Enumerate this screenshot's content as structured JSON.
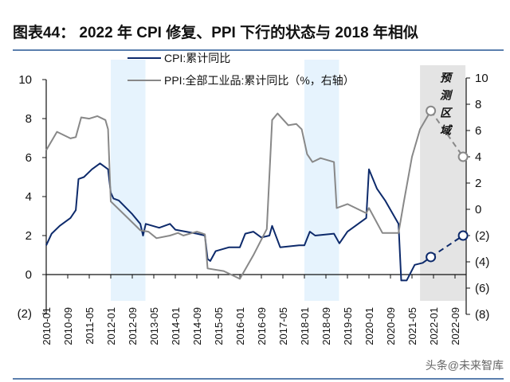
{
  "title": "图表44：  2022 年 CPI 修复、PPI 下行的状态与 2018 年相似",
  "watermark": "头条@未来智库",
  "chart_data": {
    "type": "line",
    "title": "2022 年 CPI 修复、PPI 下行的状态与 2018 年相似",
    "x_tick_labels": [
      "2010-01",
      "2010-09",
      "2011-05",
      "2012-01",
      "2012-09",
      "2013-05",
      "2014-01",
      "2014-09",
      "2015-05",
      "2016-01",
      "2016-09",
      "2017-05",
      "2018-01",
      "2018-09",
      "2019-05",
      "2020-01",
      "2020-09",
      "2021-05",
      "2022-01",
      "2022-09"
    ],
    "x_range": [
      "2010-01",
      "2023-01"
    ],
    "left_axis": {
      "ylim": [
        -2,
        10
      ],
      "ticks": [
        "10",
        "8",
        "6",
        "4",
        "2",
        "0",
        "(2)"
      ]
    },
    "right_axis": {
      "ylim": [
        -8,
        10
      ],
      "ticks": [
        "10",
        "8",
        "6",
        "4",
        "2",
        "0",
        "(2)",
        "(4)",
        "(6)",
        "(8)"
      ]
    },
    "grid": false,
    "legend_position": "top-center",
    "shaded_regions": [
      {
        "from": "2012-01",
        "to": "2013-01",
        "color": "#e6f3fd"
      },
      {
        "from": "2018-01",
        "to": "2019-01",
        "color": "#e6f3fd"
      },
      {
        "from": "2021-08",
        "to": "2022-12",
        "color": "#e4e4e4",
        "label": "预测区域"
      }
    ],
    "series": [
      {
        "name": "CPI:累计同比",
        "axis": "left",
        "color": "#0d2a6b",
        "points": [
          [
            "2010-01",
            1.5
          ],
          [
            "2010-03",
            2.1
          ],
          [
            "2010-06",
            2.5
          ],
          [
            "2010-10",
            2.9
          ],
          [
            "2010-12",
            3.3
          ],
          [
            "2011-01",
            4.9
          ],
          [
            "2011-03",
            5.0
          ],
          [
            "2011-06",
            5.4
          ],
          [
            "2011-09",
            5.7
          ],
          [
            "2011-12",
            5.4
          ],
          [
            "2012-01",
            4.2
          ],
          [
            "2012-02",
            3.9
          ],
          [
            "2012-04",
            3.8
          ],
          [
            "2012-09",
            3.1
          ],
          [
            "2012-12",
            2.6
          ],
          [
            "2013-01",
            2.0
          ],
          [
            "2013-02",
            2.6
          ],
          [
            "2013-07",
            2.4
          ],
          [
            "2013-11",
            2.6
          ],
          [
            "2014-01",
            2.3
          ],
          [
            "2014-05",
            2.2
          ],
          [
            "2014-09",
            2.1
          ],
          [
            "2014-12",
            2.0
          ],
          [
            "2015-01",
            0.8
          ],
          [
            "2015-02",
            0.7
          ],
          [
            "2015-04",
            1.2
          ],
          [
            "2015-09",
            1.4
          ],
          [
            "2016-01",
            1.4
          ],
          [
            "2016-03",
            2.1
          ],
          [
            "2016-06",
            2.2
          ],
          [
            "2016-09",
            1.9
          ],
          [
            "2016-12",
            2.0
          ],
          [
            "2017-01",
            2.5
          ],
          [
            "2017-04",
            1.4
          ],
          [
            "2017-11",
            1.5
          ],
          [
            "2018-01",
            1.5
          ],
          [
            "2018-03",
            2.2
          ],
          [
            "2018-05",
            2.0
          ],
          [
            "2018-12",
            2.1
          ],
          [
            "2019-02",
            1.6
          ],
          [
            "2019-05",
            2.2
          ],
          [
            "2019-12",
            2.9
          ],
          [
            "2020-01",
            5.4
          ],
          [
            "2020-04",
            4.4
          ],
          [
            "2020-07",
            3.8
          ],
          [
            "2020-12",
            2.6
          ],
          [
            "2021-01",
            -0.3
          ],
          [
            "2021-03",
            -0.3
          ],
          [
            "2021-06",
            0.5
          ],
          [
            "2021-09",
            0.6
          ],
          [
            "2021-11",
            0.8
          ],
          [
            "2021-12",
            0.9
          ]
        ],
        "forecast": [
          [
            "2021-12",
            0.9
          ],
          [
            "2022-12",
            2.0
          ]
        ]
      },
      {
        "name": "PPI:全部工业品:累计同比（%，右轴）",
        "axis": "right",
        "color": "#888888",
        "points": [
          [
            "2010-01",
            4.5
          ],
          [
            "2010-05",
            5.9
          ],
          [
            "2010-10",
            5.4
          ],
          [
            "2010-12",
            5.5
          ],
          [
            "2011-02",
            7.0
          ],
          [
            "2011-05",
            6.9
          ],
          [
            "2011-08",
            7.1
          ],
          [
            "2011-11",
            6.8
          ],
          [
            "2011-12",
            6.1
          ],
          [
            "2012-01",
            0.6
          ],
          [
            "2012-07",
            -0.6
          ],
          [
            "2012-12",
            -1.6
          ],
          [
            "2013-03",
            -1.7
          ],
          [
            "2013-06",
            -2.2
          ],
          [
            "2013-11",
            -2.0
          ],
          [
            "2014-02",
            -1.8
          ],
          [
            "2014-04",
            -2.0
          ],
          [
            "2014-09",
            -1.7
          ],
          [
            "2014-12",
            -1.9
          ],
          [
            "2015-01",
            -4.5
          ],
          [
            "2015-07",
            -4.7
          ],
          [
            "2016-01",
            -5.3
          ],
          [
            "2016-06",
            -3.5
          ],
          [
            "2016-11",
            -1.5
          ],
          [
            "2017-01",
            6.8
          ],
          [
            "2017-03",
            7.3
          ],
          [
            "2017-07",
            6.4
          ],
          [
            "2017-10",
            6.5
          ],
          [
            "2017-12",
            6.1
          ],
          [
            "2018-02",
            4.2
          ],
          [
            "2018-04",
            3.6
          ],
          [
            "2018-07",
            3.9
          ],
          [
            "2018-12",
            3.6
          ],
          [
            "2019-01",
            0.1
          ],
          [
            "2019-05",
            0.4
          ],
          [
            "2019-12",
            -0.3
          ],
          [
            "2020-01",
            0.1
          ],
          [
            "2020-06",
            -1.8
          ],
          [
            "2020-12",
            -1.8
          ],
          [
            "2021-02",
            0.6
          ],
          [
            "2021-05",
            4.0
          ],
          [
            "2021-08",
            6.1
          ],
          [
            "2021-12",
            7.5
          ]
        ],
        "forecast": [
          [
            "2021-12",
            7.5
          ],
          [
            "2022-12",
            4.0
          ]
        ]
      }
    ]
  }
}
